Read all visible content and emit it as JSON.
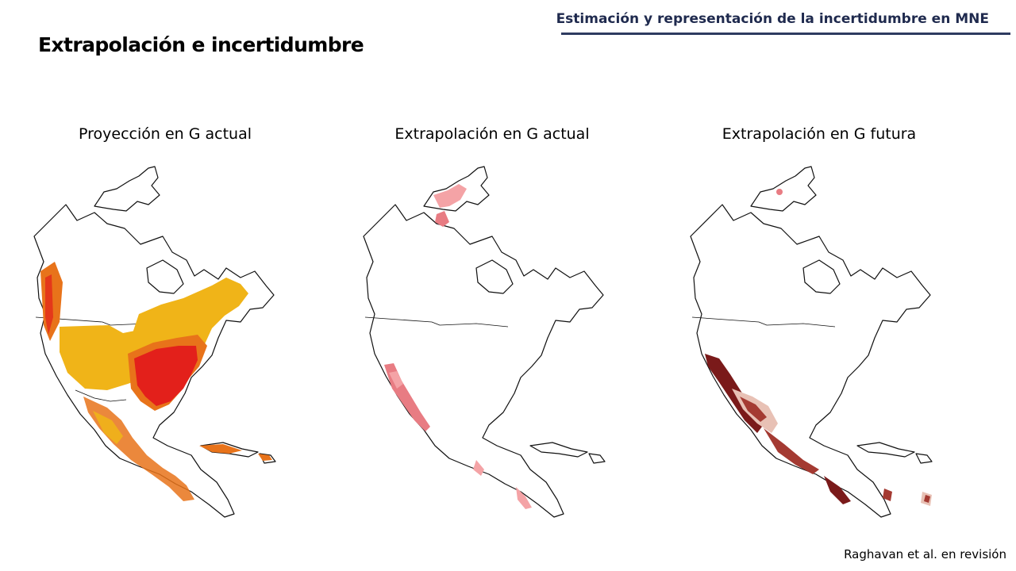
{
  "header": {
    "title": "Estimación y representación de la incertidumbre en MNE"
  },
  "slide": {
    "title": "Extrapolación e incertidumbre"
  },
  "panels": [
    {
      "title": "Proyección en G actual",
      "colors": [
        "#f0b418",
        "#e8731a",
        "#e3201b"
      ]
    },
    {
      "title": "Extrapolación en G actual",
      "colors": [
        "#f4a3a6",
        "#e87c83"
      ]
    },
    {
      "title": "Extrapolación en G futura",
      "colors": [
        "#7a1a1a",
        "#a43a32",
        "#e8c1b5"
      ]
    }
  ],
  "citation": "Raghavan et al. en revisión"
}
